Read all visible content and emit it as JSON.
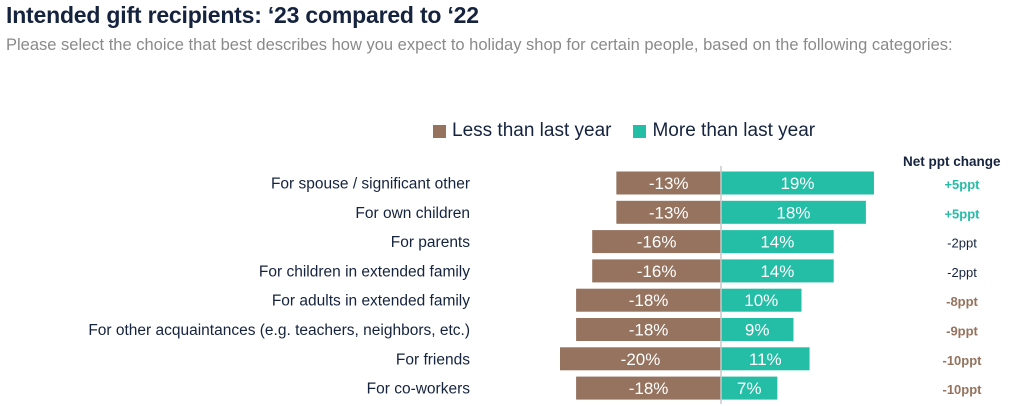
{
  "chart_data": {
    "type": "bar",
    "orientation": "horizontal-diverging",
    "title": "Intended gift recipients: ‘23 compared to ‘22",
    "subtitle": "Please select the choice that best describes how you expect to holiday shop for certain people, based on the following categories:",
    "legend": {
      "placement": "top-center",
      "entries": [
        {
          "name": "Less than last year",
          "color": "#95735e"
        },
        {
          "name": "More than last year",
          "color": "#24bda5"
        }
      ]
    },
    "categories": [
      "For spouse / significant other",
      "For own children",
      "For parents",
      "For children in extended family",
      "For adults in extended family",
      "For other acquaintances (e.g. teachers, neighbors, etc.)",
      "For friends",
      "For co-workers"
    ],
    "series": [
      {
        "name": "Less than last year",
        "color": "#95735e",
        "values": [
          -13,
          -13,
          -16,
          -16,
          -18,
          -18,
          -20,
          -18
        ],
        "labels": [
          "-13%",
          "-13%",
          "-16%",
          "-16%",
          "-18%",
          "-18%",
          "-20%",
          "-18%"
        ]
      },
      {
        "name": "More than last year",
        "color": "#24bda5",
        "values": [
          19,
          18,
          14,
          14,
          10,
          9,
          11,
          7
        ],
        "labels": [
          "19%",
          "18%",
          "14%",
          "14%",
          "10%",
          "9%",
          "11%",
          "7%"
        ]
      }
    ],
    "net_change": {
      "header": "Net ppt change",
      "values": [
        "+5ppt",
        "+5ppt",
        "-2ppt",
        "-2ppt",
        "-8ppt",
        "-9ppt",
        "-10ppt",
        "-10ppt"
      ],
      "colors": [
        "#24bda5",
        "#24bda5",
        "#15233f",
        "#15233f",
        "#95735e",
        "#95735e",
        "#95735e",
        "#95735e"
      ],
      "bold": [
        true,
        true,
        false,
        false,
        true,
        true,
        true,
        true
      ]
    },
    "xlabel": "",
    "ylabel": "",
    "xlim": [
      -20,
      20
    ],
    "grid": false,
    "axis_color": "#c8c8c8"
  }
}
